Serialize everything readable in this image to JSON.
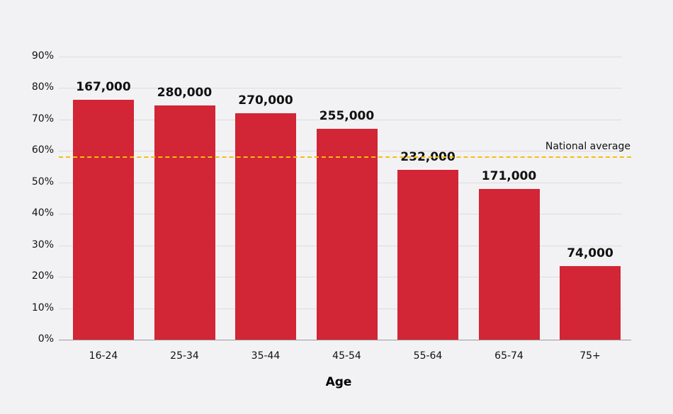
{
  "chart_data": {
    "type": "bar",
    "title": "",
    "xlabel": "Age",
    "ylabel": "",
    "ylim": [
      0,
      90
    ],
    "yticks": [
      "0%",
      "10%",
      "20%",
      "30%",
      "40%",
      "50%",
      "60%",
      "70%",
      "80%",
      "90%"
    ],
    "categories": [
      "16-24",
      "25-34",
      "35-44",
      "45-54",
      "55-64",
      "65-74",
      "75+"
    ],
    "values": [
      76.3,
      74.5,
      72,
      67,
      54,
      48,
      23.4
    ],
    "labels": [
      "167,000",
      "280,000",
      "270,000",
      "255,000",
      "232,000",
      "171,000",
      "74,000"
    ],
    "bar_color": "#d22535",
    "reference_line": {
      "label": "National average",
      "value": 58.3,
      "color": "#f2c00c",
      "style": "dashed"
    },
    "grid": true
  }
}
